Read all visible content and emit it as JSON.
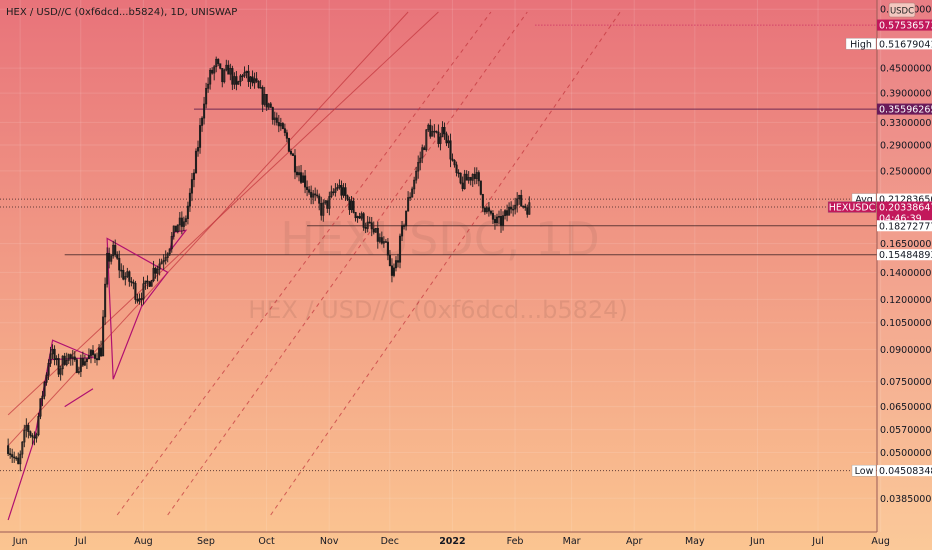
{
  "header": {
    "symbol_title": "HEX / USD//C (0xf6dcd...b5824), 1D, UNISWAP",
    "currency_badge": "USDC"
  },
  "watermark": {
    "ticker": "HEXUSDC, 1D",
    "description": "HEX / USD//C (0xf6dcd...b5824)"
  },
  "colors": {
    "background_top": "#e8737a",
    "background_bottom": "#fbc591",
    "candle": "#1a1a1a",
    "trendline": "#b01070",
    "channel_line": "#c0323a",
    "price_tag": "#c2185b"
  },
  "chart_data": {
    "type": "candlestick",
    "title": "HEX / USD//C (0xf6dcd...b5824), 1D, UNISWAP",
    "scale": "log",
    "ylim": [
      0.034,
      0.62
    ],
    "x_ticks": [
      "Jun",
      "Jul",
      "Aug",
      "Sep",
      "Oct",
      "Nov",
      "Dec",
      "2022",
      "Feb",
      "Mar",
      "Apr",
      "May",
      "Jun",
      "Jul",
      "Aug"
    ],
    "y_ticks": [
      "0.6300000000",
      "0.4500000000",
      "0.3900000000",
      "0.3300000000",
      "0.2900000000",
      "0.2500000000",
      "0.1650000000",
      "0.1400000000",
      "0.1200000000",
      "0.1050000000",
      "0.0900000000",
      "0.0750000000",
      "0.0650000000",
      "0.0570000000",
      "0.0500000000",
      "0.0385000000"
    ],
    "close_path": [
      {
        "date": "2021-06-01",
        "close": 0.052
      },
      {
        "date": "2021-06-06",
        "close": 0.046
      },
      {
        "date": "2021-06-10",
        "close": 0.058
      },
      {
        "date": "2021-06-14",
        "close": 0.054
      },
      {
        "date": "2021-06-18",
        "close": 0.07
      },
      {
        "date": "2021-06-22",
        "close": 0.09
      },
      {
        "date": "2021-06-26",
        "close": 0.08
      },
      {
        "date": "2021-06-30",
        "close": 0.088
      },
      {
        "date": "2021-07-04",
        "close": 0.082
      },
      {
        "date": "2021-07-09",
        "close": 0.085
      },
      {
        "date": "2021-07-13",
        "close": 0.087
      },
      {
        "date": "2021-07-17",
        "close": 0.09
      },
      {
        "date": "2021-07-20",
        "close": 0.15
      },
      {
        "date": "2021-07-23",
        "close": 0.158
      },
      {
        "date": "2021-07-27",
        "close": 0.14
      },
      {
        "date": "2021-08-01",
        "close": 0.132
      },
      {
        "date": "2021-08-04",
        "close": 0.122
      },
      {
        "date": "2021-08-08",
        "close": 0.128
      },
      {
        "date": "2021-08-12",
        "close": 0.142
      },
      {
        "date": "2021-08-16",
        "close": 0.15
      },
      {
        "date": "2021-08-20",
        "close": 0.165
      },
      {
        "date": "2021-08-24",
        "close": 0.185
      },
      {
        "date": "2021-08-27",
        "close": 0.182
      },
      {
        "date": "2021-08-31",
        "close": 0.23
      },
      {
        "date": "2021-09-03",
        "close": 0.29
      },
      {
        "date": "2021-09-06",
        "close": 0.38
      },
      {
        "date": "2021-09-09",
        "close": 0.43
      },
      {
        "date": "2021-09-12",
        "close": 0.46
      },
      {
        "date": "2021-09-15",
        "close": 0.42
      },
      {
        "date": "2021-09-18",
        "close": 0.45
      },
      {
        "date": "2021-09-22",
        "close": 0.4
      },
      {
        "date": "2021-09-25",
        "close": 0.44
      },
      {
        "date": "2021-09-28",
        "close": 0.42
      },
      {
        "date": "2021-10-01",
        "close": 0.41
      },
      {
        "date": "2021-10-05",
        "close": 0.38
      },
      {
        "date": "2021-10-09",
        "close": 0.36
      },
      {
        "date": "2021-10-13",
        "close": 0.32
      },
      {
        "date": "2021-10-17",
        "close": 0.3
      },
      {
        "date": "2021-10-21",
        "close": 0.26
      },
      {
        "date": "2021-10-25",
        "close": 0.24
      },
      {
        "date": "2021-10-29",
        "close": 0.22
      },
      {
        "date": "2021-11-03",
        "close": 0.2
      },
      {
        "date": "2021-11-07",
        "close": 0.21
      },
      {
        "date": "2021-11-11",
        "close": 0.23
      },
      {
        "date": "2021-11-15",
        "close": 0.215
      },
      {
        "date": "2021-11-19",
        "close": 0.2
      },
      {
        "date": "2021-11-23",
        "close": 0.19
      },
      {
        "date": "2021-11-27",
        "close": 0.18
      },
      {
        "date": "2021-12-01",
        "close": 0.17
      },
      {
        "date": "2021-12-05",
        "close": 0.16
      },
      {
        "date": "2021-12-08",
        "close": 0.135
      },
      {
        "date": "2021-12-11",
        "close": 0.155
      },
      {
        "date": "2021-12-15",
        "close": 0.2
      },
      {
        "date": "2021-12-19",
        "close": 0.24
      },
      {
        "date": "2021-12-22",
        "close": 0.27
      },
      {
        "date": "2021-12-26",
        "close": 0.32
      },
      {
        "date": "2021-12-30",
        "close": 0.3
      },
      {
        "date": "2022-01-03",
        "close": 0.32
      },
      {
        "date": "2022-01-05",
        "close": 0.29
      },
      {
        "date": "2022-01-08",
        "close": 0.25
      },
      {
        "date": "2022-01-11",
        "close": 0.23
      },
      {
        "date": "2022-01-15",
        "close": 0.24
      },
      {
        "date": "2022-01-18",
        "close": 0.25
      },
      {
        "date": "2022-01-22",
        "close": 0.21
      },
      {
        "date": "2022-01-26",
        "close": 0.19
      },
      {
        "date": "2022-01-30",
        "close": 0.185
      },
      {
        "date": "2022-02-03",
        "close": 0.195
      },
      {
        "date": "2022-02-07",
        "close": 0.215
      },
      {
        "date": "2022-02-10",
        "close": 0.207
      },
      {
        "date": "2022-02-14",
        "close": 0.203
      }
    ],
    "price_levels": [
      {
        "label": "",
        "value": "0.5753657300",
        "price": 0.57536573,
        "style": "dotted",
        "tag": "magenta"
      },
      {
        "label": "High",
        "value": "0.5167904186",
        "price": 0.5167904186,
        "style": "none",
        "tag": "white"
      },
      {
        "label": "",
        "value": "0.3559626505",
        "price": 0.3559626505,
        "style": "solid",
        "tag": "purple"
      },
      {
        "label": "Avg",
        "value": "0.2128365062",
        "price": 0.2128365062,
        "style": "dotted",
        "tag": "white"
      },
      {
        "label": "HEXUSDC",
        "value": "0.2033864705",
        "price": 0.2033864705,
        "style": "dotted",
        "tag": "current",
        "countdown": "04:46:39"
      },
      {
        "label": "",
        "value": "0.1827277716",
        "price": 0.1827277716,
        "style": "solid",
        "tag": "white"
      },
      {
        "label": "",
        "value": "0.1548489343",
        "price": 0.1548489343,
        "style": "solid",
        "tag": "white"
      },
      {
        "label": "Low",
        "value": "0.0450834800",
        "price": 0.04508348,
        "style": "dotted",
        "tag": "white"
      }
    ],
    "drawings": [
      {
        "type": "rising-channel",
        "name": "channel-1",
        "from": {
          "date": "2021-06-01",
          "price": 0.052
        },
        "to": {
          "date": "2021-12-16",
          "price": 0.62
        }
      },
      {
        "type": "rising-channel",
        "name": "channel-2",
        "from": {
          "date": "2021-06-01",
          "price": 0.062
        },
        "to": {
          "date": "2021-12-31",
          "price": 0.62
        }
      },
      {
        "type": "rising-channel",
        "name": "channel-3",
        "from": {
          "date": "2021-07-25",
          "price": 0.035
        },
        "to": {
          "date": "2022-01-26",
          "price": 0.62
        }
      },
      {
        "type": "rising-channel",
        "name": "channel-4",
        "from": {
          "date": "2021-08-19",
          "price": 0.035
        },
        "to": {
          "date": "2022-02-13",
          "price": 0.62
        }
      },
      {
        "type": "rising-channel",
        "name": "channel-5",
        "from": {
          "date": "2021-10-09",
          "price": 0.035
        },
        "to": {
          "date": "2022-03-31",
          "price": 0.62
        }
      }
    ]
  }
}
